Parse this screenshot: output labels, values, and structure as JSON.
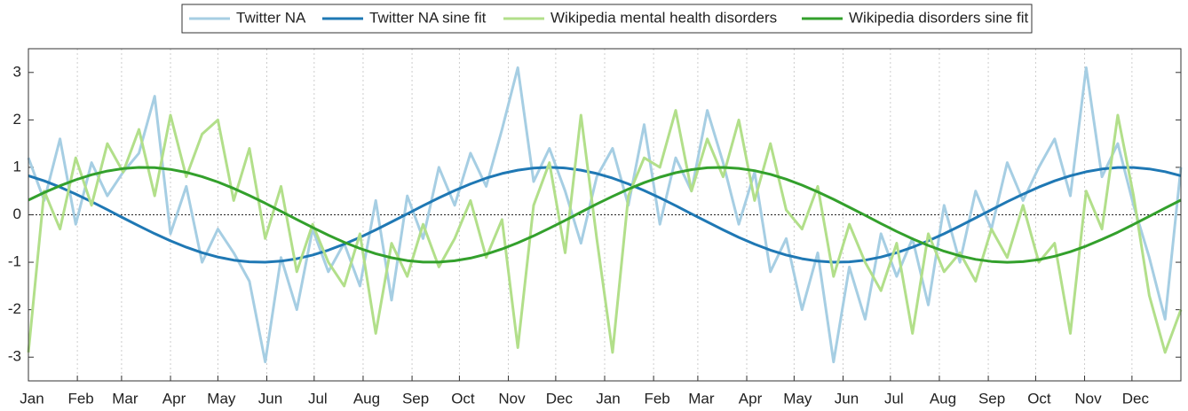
{
  "chart_data": {
    "type": "line",
    "x": [
      0,
      10,
      20,
      30,
      40,
      50,
      60,
      70,
      80,
      90,
      100,
      110,
      120,
      130,
      140,
      150,
      160,
      170,
      180,
      190,
      200,
      210,
      220,
      230,
      240,
      250,
      260,
      270,
      280,
      290,
      300,
      310,
      320,
      330,
      340,
      350,
      360,
      370,
      380,
      390,
      400,
      410,
      420,
      430,
      440,
      450,
      460,
      470,
      480,
      490,
      500,
      510,
      520,
      530,
      540,
      550,
      560,
      570,
      580,
      590,
      600,
      610,
      620,
      630,
      640,
      650,
      660,
      670,
      680,
      690,
      700,
      710,
      720,
      730
    ],
    "series": [
      {
        "name": "Twitter NA",
        "color": "#a6cee3",
        "values": [
          1.2,
          0.3,
          1.6,
          -0.2,
          1.1,
          0.4,
          0.9,
          1.3,
          2.5,
          -0.4,
          0.6,
          -1.0,
          -0.3,
          -0.8,
          -1.4,
          -3.1,
          -0.9,
          -2.0,
          -0.3,
          -1.2,
          -0.6,
          -1.5,
          0.3,
          -1.8,
          0.4,
          -0.5,
          1.0,
          0.2,
          1.3,
          0.6,
          1.8,
          3.1,
          0.7,
          1.4,
          0.5,
          -0.6,
          0.8,
          1.4,
          0.2,
          1.9,
          -0.2,
          1.2,
          0.5,
          2.2,
          1.1,
          -0.2,
          0.9,
          -1.2,
          -0.5,
          -2.0,
          -0.8,
          -3.1,
          -1.1,
          -2.2,
          -0.4,
          -1.3,
          -0.5,
          -1.9,
          0.2,
          -1.0,
          0.5,
          -0.3,
          1.1,
          0.3,
          1.0,
          1.6,
          0.4,
          3.1,
          0.8,
          1.5,
          0.2,
          -0.9,
          -2.2,
          1.0
        ]
      },
      {
        "name": "Twitter NA sine fit",
        "color": "#1f78b4",
        "values": [
          0.824,
          0.715,
          0.584,
          0.437,
          0.276,
          0.108,
          -0.065,
          -0.235,
          -0.397,
          -0.549,
          -0.684,
          -0.799,
          -0.89,
          -0.955,
          -0.992,
          -0.999,
          -0.977,
          -0.926,
          -0.847,
          -0.744,
          -0.618,
          -0.476,
          -0.317,
          -0.15,
          0.021,
          0.192,
          0.357,
          0.512,
          0.652,
          0.772,
          0.87,
          0.941,
          0.985,
          1.0,
          0.985,
          0.941,
          0.87,
          0.772,
          0.652,
          0.512,
          0.358,
          0.192,
          0.021,
          -0.15,
          -0.317,
          -0.476,
          -0.618,
          -0.744,
          -0.848,
          -0.926,
          -0.977,
          -0.999,
          -0.992,
          -0.955,
          -0.89,
          -0.799,
          -0.684,
          -0.549,
          -0.399,
          -0.235,
          -0.065,
          0.106,
          0.276,
          0.435,
          0.584,
          0.714,
          0.823,
          0.908,
          0.966,
          0.996,
          0.996,
          0.967,
          0.909,
          0.824
        ]
      },
      {
        "name": "Wikipedia mental health disorders",
        "color": "#b2df8a",
        "values": [
          -2.9,
          0.5,
          -0.3,
          1.2,
          0.2,
          1.5,
          0.9,
          1.8,
          0.4,
          2.1,
          0.8,
          1.7,
          2.0,
          0.3,
          1.4,
          -0.5,
          0.6,
          -1.2,
          -0.2,
          -1.0,
          -1.5,
          -0.4,
          -2.5,
          -0.6,
          -1.3,
          -0.2,
          -1.1,
          -0.5,
          0.3,
          -0.9,
          -0.1,
          -2.8,
          0.2,
          1.1,
          -0.8,
          2.1,
          -0.5,
          -2.9,
          0.4,
          1.2,
          1.0,
          2.2,
          0.5,
          1.6,
          0.8,
          2.0,
          0.3,
          1.5,
          0.1,
          -0.3,
          0.6,
          -1.3,
          -0.2,
          -1.0,
          -1.6,
          -0.6,
          -2.5,
          -0.4,
          -1.2,
          -0.8,
          -1.4,
          -0.3,
          -0.9,
          0.2,
          -1.0,
          -0.6,
          -2.5,
          0.5,
          -0.3,
          2.1,
          0.4,
          -1.7,
          -2.9,
          -2.0
        ]
      },
      {
        "name": "Wikipedia disorders sine fit",
        "color": "#33a02c",
        "values": [
          0.309,
          0.468,
          0.612,
          0.738,
          0.843,
          0.923,
          0.975,
          0.999,
          0.993,
          0.957,
          0.894,
          0.804,
          0.69,
          0.556,
          0.405,
          0.244,
          0.073,
          -0.099,
          -0.267,
          -0.429,
          -0.578,
          -0.709,
          -0.819,
          -0.905,
          -0.965,
          -0.996,
          -0.997,
          -0.969,
          -0.912,
          -0.829,
          -0.721,
          -0.59,
          -0.445,
          -0.284,
          -0.117,
          0.056,
          0.227,
          0.389,
          0.542,
          0.677,
          0.793,
          0.886,
          0.952,
          0.991,
          0.999,
          0.979,
          0.929,
          0.853,
          0.75,
          0.625,
          0.483,
          0.326,
          0.158,
          -0.012,
          -0.184,
          -0.35,
          -0.505,
          -0.645,
          -0.767,
          -0.865,
          -0.938,
          -0.984,
          -1.0,
          -0.987,
          -0.944,
          -0.874,
          -0.778,
          -0.659,
          -0.519,
          -0.367,
          -0.201,
          -0.031,
          0.141,
          0.309
        ]
      }
    ],
    "xlim": [
      0,
      730
    ],
    "xticks": [
      {
        "value": 0,
        "label": "Jan"
      },
      {
        "value": 31,
        "label": "Feb"
      },
      {
        "value": 59,
        "label": "Mar"
      },
      {
        "value": 90,
        "label": "Apr"
      },
      {
        "value": 120,
        "label": "May"
      },
      {
        "value": 151,
        "label": "Jun"
      },
      {
        "value": 181,
        "label": "Jul"
      },
      {
        "value": 212,
        "label": "Aug"
      },
      {
        "value": 243,
        "label": "Sep"
      },
      {
        "value": 273,
        "label": "Oct"
      },
      {
        "value": 304,
        "label": "Nov"
      },
      {
        "value": 334,
        "label": "Dec"
      },
      {
        "value": 365,
        "label": "Jan"
      },
      {
        "value": 396,
        "label": "Feb"
      },
      {
        "value": 424,
        "label": "Mar"
      },
      {
        "value": 455,
        "label": "Apr"
      },
      {
        "value": 485,
        "label": "May"
      },
      {
        "value": 516,
        "label": "Jun"
      },
      {
        "value": 546,
        "label": "Jul"
      },
      {
        "value": 577,
        "label": "Aug"
      },
      {
        "value": 608,
        "label": "Sep"
      },
      {
        "value": 638,
        "label": "Oct"
      },
      {
        "value": 669,
        "label": "Nov"
      },
      {
        "value": 699,
        "label": "Dec"
      }
    ],
    "ylim": [
      -3.5,
      3.5
    ],
    "yticks": [
      -3,
      -2,
      -1,
      0,
      1,
      2,
      3
    ],
    "x_grid": true,
    "zero_line": true,
    "legend": "top"
  }
}
